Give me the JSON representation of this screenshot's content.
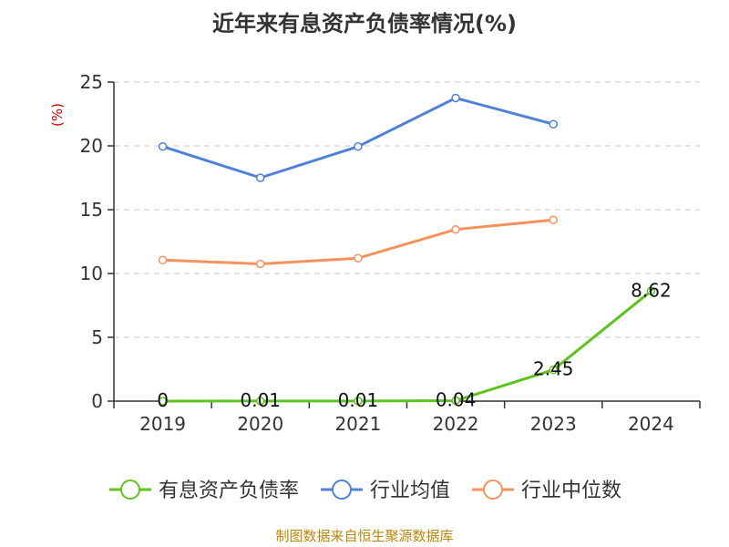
{
  "chart_data": {
    "type": "line",
    "title": "近年来有息资产负债率情况(%)",
    "ylabel": "(%)",
    "xlabel": "",
    "categories": [
      "2019",
      "2020",
      "2021",
      "2022",
      "2023",
      "2024"
    ],
    "ylim": [
      0,
      25
    ],
    "yticks": [
      "0",
      "5",
      "10",
      "15",
      "20",
      "25"
    ],
    "grid": true,
    "legend_position": "bottom",
    "series": [
      {
        "name": "有息资产负债率",
        "color": "#5ec31e",
        "values": [
          0,
          0.01,
          0.01,
          0.04,
          2.45,
          8.62
        ],
        "labels": [
          "0",
          "0.01",
          "0.01",
          "0.04",
          "2.45",
          "8.62"
        ]
      },
      {
        "name": "行业均值",
        "color": "#4f81d9",
        "values": [
          19.95,
          17.5,
          19.95,
          23.75,
          21.7,
          null
        ]
      },
      {
        "name": "行业中位数",
        "color": "#f5915c",
        "values": [
          11.05,
          10.75,
          11.2,
          13.45,
          14.2,
          null
        ]
      }
    ],
    "source": "制图数据来自恒生聚源数据库"
  }
}
